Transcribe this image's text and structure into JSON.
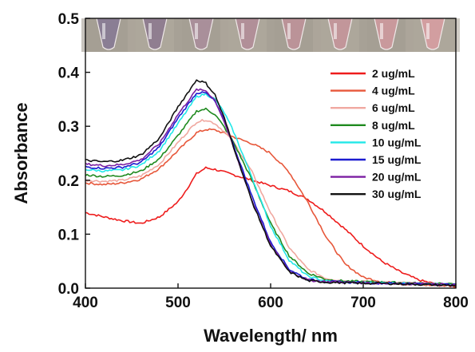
{
  "chart_data": {
    "type": "line",
    "xlabel": "Wavelength/ nm",
    "ylabel": "Absorbance",
    "xlim": [
      400,
      800
    ],
    "ylim": [
      0,
      0.5
    ],
    "xticks": [
      "400",
      "500",
      "600",
      "700",
      "800"
    ],
    "yticks": [
      "0.0",
      "0.1",
      "0.2",
      "0.3",
      "0.4",
      "0.5"
    ],
    "legend_position": "top-right",
    "inset": "photo of 8 vials, purple (left) to pink (right), across the top of the plot",
    "inset_vial_colors": [
      "#8a7e94",
      "#907e90",
      "#a98f9a",
      "#b18f98",
      "#bb9398",
      "#c2969a",
      "#c9999c",
      "#d29ea0"
    ],
    "series": [
      {
        "name": "2 ug/mL",
        "color": "#ee1c1c",
        "x": [
          400,
          420,
          440,
          460,
          480,
          500,
          510,
          520,
          530,
          540,
          550,
          560,
          580,
          600,
          620,
          640,
          660,
          680,
          700,
          720,
          740,
          760,
          780,
          800
        ],
        "y": [
          0.14,
          0.132,
          0.125,
          0.12,
          0.132,
          0.16,
          0.185,
          0.212,
          0.223,
          0.22,
          0.215,
          0.21,
          0.2,
          0.19,
          0.18,
          0.165,
          0.14,
          0.11,
          0.078,
          0.05,
          0.03,
          0.015,
          0.007,
          0.003
        ]
      },
      {
        "name": "4 ug/mL",
        "color": "#e7573a",
        "x": [
          400,
          420,
          440,
          460,
          480,
          500,
          520,
          530,
          540,
          550,
          560,
          580,
          600,
          620,
          640,
          660,
          680,
          700,
          720,
          740,
          760,
          780,
          800
        ],
        "y": [
          0.195,
          0.192,
          0.195,
          0.202,
          0.222,
          0.255,
          0.288,
          0.294,
          0.293,
          0.287,
          0.28,
          0.268,
          0.25,
          0.215,
          0.16,
          0.095,
          0.045,
          0.02,
          0.012,
          0.008,
          0.006,
          0.005,
          0.004
        ]
      },
      {
        "name": "6 ug/mL",
        "color": "#f0a8a0",
        "x": [
          400,
          420,
          440,
          460,
          480,
          500,
          520,
          530,
          540,
          550,
          560,
          580,
          600,
          620,
          640,
          660,
          680,
          700,
          720,
          740,
          760,
          780,
          800
        ],
        "y": [
          0.2,
          0.198,
          0.2,
          0.208,
          0.23,
          0.27,
          0.308,
          0.312,
          0.305,
          0.29,
          0.27,
          0.215,
          0.14,
          0.075,
          0.035,
          0.018,
          0.013,
          0.012,
          0.011,
          0.01,
          0.009,
          0.008,
          0.007
        ]
      },
      {
        "name": "8 ug/mL",
        "color": "#1f8a1f",
        "x": [
          400,
          420,
          440,
          460,
          480,
          500,
          520,
          530,
          540,
          550,
          560,
          580,
          600,
          620,
          640,
          660,
          680,
          700,
          720,
          740,
          760,
          780,
          800
        ],
        "y": [
          0.21,
          0.207,
          0.209,
          0.217,
          0.24,
          0.283,
          0.328,
          0.332,
          0.322,
          0.298,
          0.27,
          0.2,
          0.12,
          0.06,
          0.028,
          0.016,
          0.013,
          0.012,
          0.011,
          0.01,
          0.009,
          0.008,
          0.007
        ]
      },
      {
        "name": "10 ug/mL",
        "color": "#22e8e8",
        "x": [
          400,
          420,
          440,
          460,
          480,
          500,
          520,
          530,
          540,
          550,
          560,
          580,
          600,
          620,
          640,
          660,
          680,
          700,
          720,
          740,
          760,
          780,
          800
        ],
        "y": [
          0.22,
          0.217,
          0.219,
          0.228,
          0.255,
          0.305,
          0.355,
          0.36,
          0.35,
          0.325,
          0.29,
          0.205,
          0.115,
          0.052,
          0.022,
          0.013,
          0.011,
          0.01,
          0.01,
          0.009,
          0.008,
          0.007,
          0.006
        ]
      },
      {
        "name": "15 ug/mL",
        "color": "#1c1cd0",
        "x": [
          400,
          420,
          440,
          460,
          480,
          500,
          520,
          530,
          540,
          550,
          560,
          580,
          600,
          620,
          640,
          660,
          680,
          700,
          720,
          740,
          760,
          780,
          800
        ],
        "y": [
          0.225,
          0.222,
          0.224,
          0.233,
          0.262,
          0.315,
          0.362,
          0.362,
          0.346,
          0.31,
          0.265,
          0.17,
          0.085,
          0.035,
          0.016,
          0.012,
          0.011,
          0.01,
          0.009,
          0.009,
          0.008,
          0.007,
          0.006
        ]
      },
      {
        "name": "20 ug/mL",
        "color": "#7b1fa2",
        "x": [
          400,
          420,
          440,
          460,
          480,
          500,
          520,
          530,
          540,
          550,
          560,
          580,
          600,
          620,
          640,
          660,
          680,
          700,
          720,
          740,
          760,
          780,
          800
        ],
        "y": [
          0.23,
          0.227,
          0.229,
          0.238,
          0.268,
          0.322,
          0.368,
          0.366,
          0.348,
          0.308,
          0.26,
          0.162,
          0.08,
          0.032,
          0.015,
          0.012,
          0.011,
          0.01,
          0.009,
          0.008,
          0.008,
          0.007,
          0.006
        ]
      },
      {
        "name": "30 ug/mL",
        "color": "#111111",
        "x": [
          400,
          420,
          440,
          460,
          480,
          500,
          520,
          530,
          540,
          550,
          560,
          580,
          600,
          620,
          640,
          660,
          680,
          700,
          720,
          740,
          760,
          780,
          800
        ],
        "y": [
          0.237,
          0.234,
          0.237,
          0.247,
          0.278,
          0.336,
          0.386,
          0.38,
          0.358,
          0.315,
          0.262,
          0.16,
          0.078,
          0.03,
          0.014,
          0.011,
          0.01,
          0.009,
          0.009,
          0.008,
          0.007,
          0.006,
          0.005
        ]
      }
    ]
  }
}
